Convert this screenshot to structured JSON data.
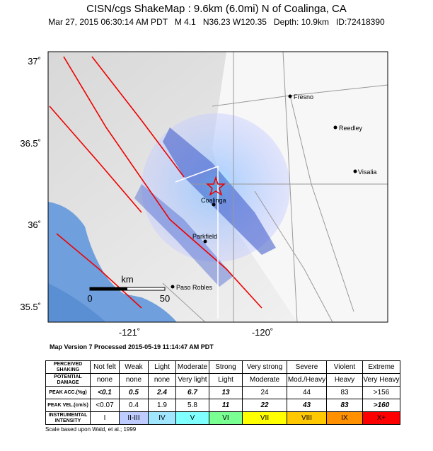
{
  "header": {
    "title": "CISN/cgs ShakeMap : 9.6km (6.0mi) N of Coalinga, CA",
    "subtitle": "Mar 27, 2015 06:30:14 AM PDT   M 4.1   N36.23 W120.35   Depth: 10.9km   ID:72418390"
  },
  "map": {
    "lat_labels": [
      "37˚",
      "36.5˚",
      "36˚",
      "35.5˚"
    ],
    "lon_labels": [
      "-121˚",
      "-120˚"
    ],
    "cities": [
      "Fresno",
      "Reedley",
      "Visalia",
      "Coalinga",
      "Parkfield",
      "Paso Robles"
    ],
    "scale": {
      "unit": "km",
      "start": "0",
      "end": "50"
    }
  },
  "footer": {
    "version": "Map Version 7 Processed 2015-05-19 11:14:47 AM PDT",
    "note": "Scale based upon Wald, et al.; 1999"
  },
  "table": {
    "rows": [
      [
        "PERCEIVED SHAKING",
        "Not felt",
        "Weak",
        "Light",
        "Moderate",
        "Strong",
        "Very strong",
        "Severe",
        "Violent",
        "Extreme"
      ],
      [
        "POTENTIAL DAMAGE",
        "none",
        "none",
        "none",
        "Very light",
        "Light",
        "Moderate",
        "Mod./Heavy",
        "Heavy",
        "Very Heavy"
      ],
      [
        "PEAK ACC.(%g)",
        "<0.1",
        "0.5",
        "2.4",
        "6.7",
        "13",
        "24",
        "44",
        "83",
        ">156"
      ],
      [
        "PEAK VEL.(cm/s)",
        "<0.07",
        "0.4",
        "1.9",
        "5.8",
        "11",
        "22",
        "43",
        "83",
        ">160"
      ],
      [
        "INSTRUMENTAL INTENSITY",
        "I",
        "II-III",
        "IV",
        "V",
        "VI",
        "VII",
        "VIII",
        "IX",
        "X+"
      ]
    ]
  }
}
